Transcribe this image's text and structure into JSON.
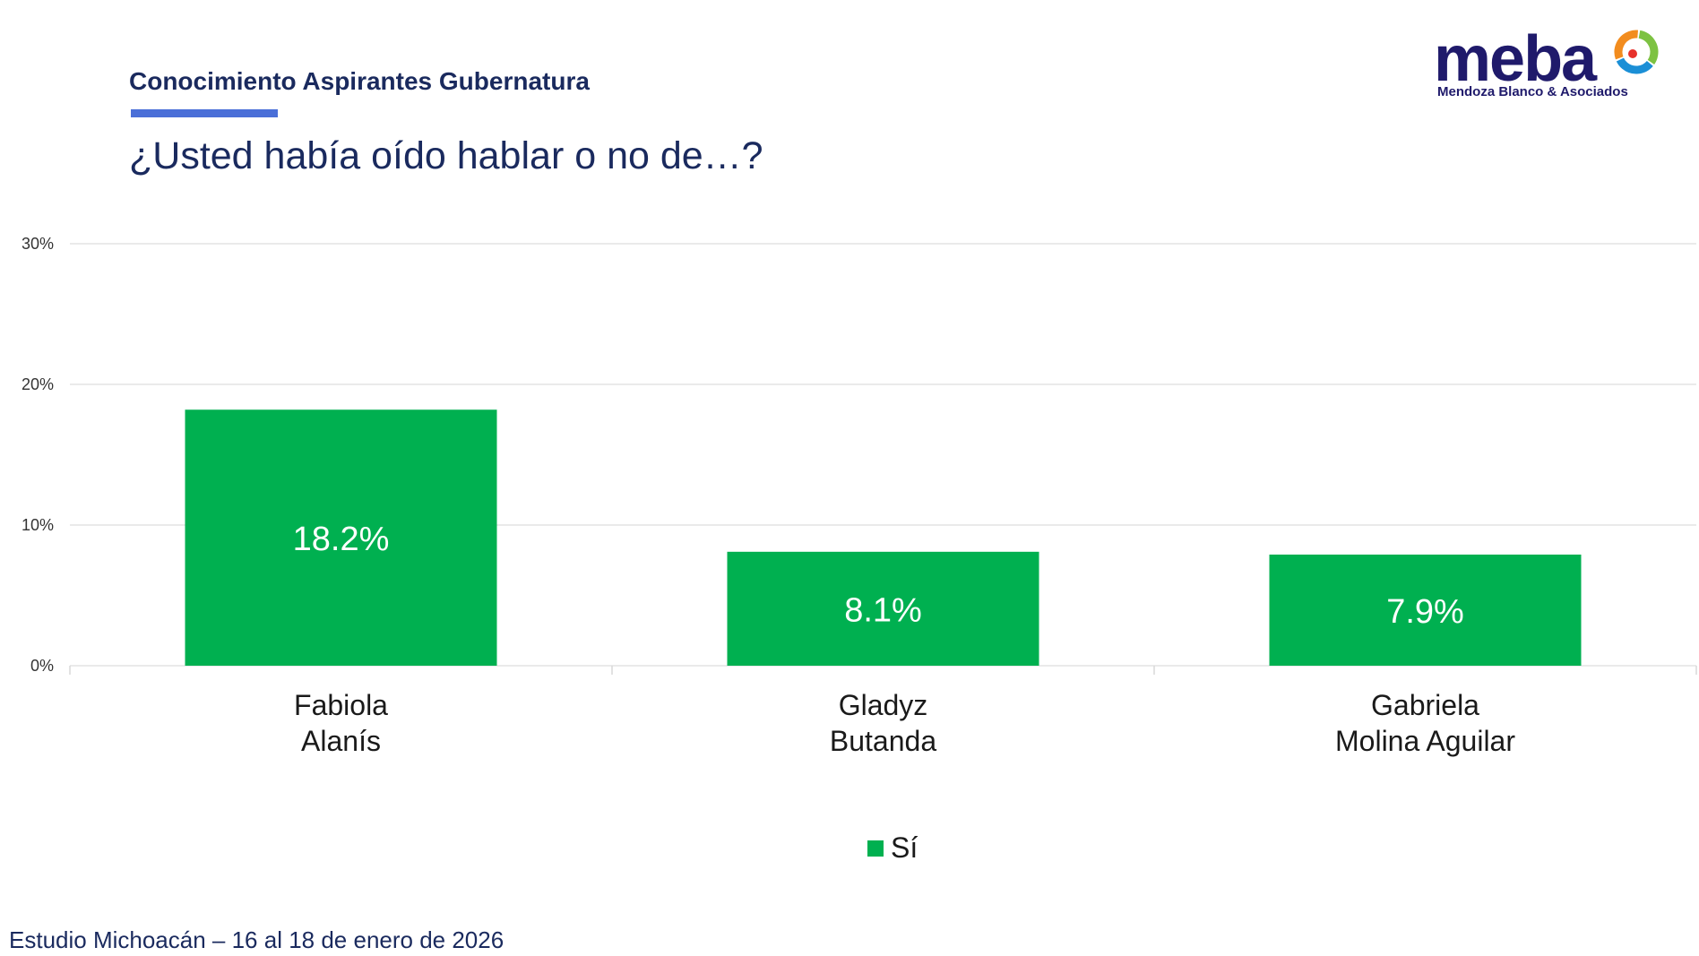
{
  "header": {
    "section_title": "Conocimiento Aspirantes Gubernatura",
    "question": "¿Usted había oído hablar o no de…?"
  },
  "logo": {
    "name": "meba",
    "subtitle": "Mendoza Blanco & Asociados"
  },
  "footer": {
    "text": "Estudio Michoacán – 16 al 18 de enero de 2026"
  },
  "colors": {
    "bar": "#00b050",
    "title": "#1a2a5e",
    "accent": "#4a6fd8"
  },
  "chart_data": {
    "type": "bar",
    "title": "",
    "xlabel": "",
    "ylabel": "",
    "ylim": [
      0,
      30
    ],
    "yticks": [
      "0%",
      "10%",
      "20%",
      "30%"
    ],
    "categories": [
      [
        "Fabiola",
        "Alanís"
      ],
      [
        "Gladyz",
        "Butanda"
      ],
      [
        "Gabriela",
        "Molina Aguilar"
      ]
    ],
    "series": [
      {
        "name": "Sí",
        "values": [
          18.2,
          8.1,
          7.9
        ],
        "labels": [
          "18.2%",
          "8.1%",
          "7.9%"
        ]
      }
    ],
    "grid": true,
    "legend": "bottom-center"
  }
}
